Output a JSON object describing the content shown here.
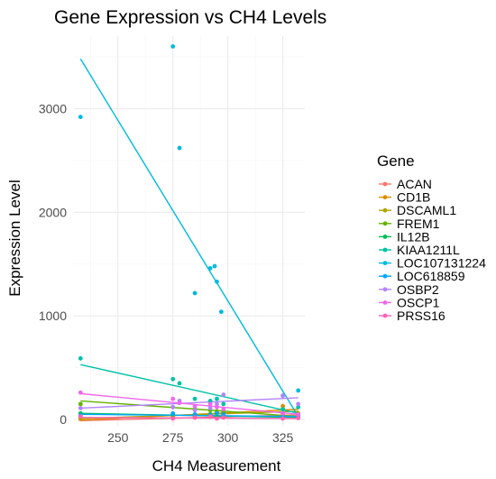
{
  "chart_data": {
    "type": "scatter",
    "title": "Gene Expression vs CH4 Levels",
    "xlabel": "CH4 Measurement",
    "ylabel": "Expression Level",
    "xlim": [
      230,
      335
    ],
    "ylim": [
      -60,
      3700
    ],
    "xticks": [
      250,
      275,
      300,
      325
    ],
    "yticks": [
      0,
      1000,
      2000,
      3000
    ],
    "grid": true,
    "legend": {
      "title": "Gene",
      "position": "right"
    },
    "series": [
      {
        "name": "ACAN",
        "color": "#F8766D",
        "points": [
          [
            233,
            10
          ],
          [
            275,
            15
          ],
          [
            285,
            20
          ],
          [
            292,
            25
          ],
          [
            295,
            30
          ],
          [
            298,
            20
          ],
          [
            325,
            40
          ],
          [
            332,
            50
          ]
        ],
        "trend": [
          [
            233,
            -10
          ],
          [
            332,
            45
          ]
        ]
      },
      {
        "name": "CD1B",
        "color": "#DB8E00",
        "points": [
          [
            233,
            5
          ],
          [
            275,
            30
          ],
          [
            285,
            20
          ],
          [
            292,
            40
          ],
          [
            295,
            60
          ],
          [
            298,
            30
          ],
          [
            325,
            130
          ],
          [
            332,
            20
          ]
        ],
        "trend": [
          [
            233,
            -5
          ],
          [
            332,
            100
          ]
        ]
      },
      {
        "name": "DSCAML1",
        "color": "#AEA200",
        "points": [
          [
            233,
            20
          ],
          [
            275,
            40
          ],
          [
            285,
            30
          ],
          [
            292,
            50
          ],
          [
            295,
            70
          ],
          [
            298,
            40
          ],
          [
            325,
            100
          ],
          [
            332,
            60
          ]
        ],
        "trend": [
          [
            233,
            10
          ],
          [
            332,
            80
          ]
        ]
      },
      {
        "name": "FREM1",
        "color": "#64B200",
        "points": [
          [
            233,
            150
          ],
          [
            275,
            120
          ],
          [
            285,
            100
          ],
          [
            292,
            90
          ],
          [
            295,
            80
          ],
          [
            298,
            70
          ],
          [
            325,
            60
          ],
          [
            332,
            40
          ]
        ],
        "trend": [
          [
            233,
            180
          ],
          [
            332,
            30
          ]
        ]
      },
      {
        "name": "IL12B",
        "color": "#00BD5C",
        "points": [
          [
            233,
            60
          ],
          [
            275,
            50
          ],
          [
            285,
            40
          ],
          [
            292,
            50
          ],
          [
            295,
            30
          ],
          [
            298,
            40
          ],
          [
            325,
            30
          ],
          [
            332,
            20
          ]
        ],
        "trend": [
          [
            233,
            60
          ],
          [
            332,
            20
          ]
        ]
      },
      {
        "name": "KIAA1211L",
        "color": "#00C1A7",
        "points": [
          [
            233,
            590
          ],
          [
            275,
            390
          ],
          [
            278,
            350
          ],
          [
            285,
            200
          ],
          [
            292,
            180
          ],
          [
            295,
            200
          ],
          [
            298,
            150
          ],
          [
            325,
            100
          ],
          [
            332,
            120
          ]
        ],
        "trend": [
          [
            233,
            530
          ],
          [
            332,
            60
          ]
        ]
      },
      {
        "name": "LOC107131224",
        "color": "#00BADE",
        "points": [
          [
            233,
            2920
          ],
          [
            275,
            3600
          ],
          [
            278,
            2620
          ],
          [
            285,
            1220
          ],
          [
            292,
            1460
          ],
          [
            294,
            1480
          ],
          [
            295,
            1330
          ],
          [
            297,
            1040
          ],
          [
            325,
            230
          ],
          [
            332,
            280
          ]
        ],
        "trend": [
          [
            233,
            3480
          ],
          [
            332,
            30
          ]
        ]
      },
      {
        "name": "LOC618859",
        "color": "#00A6FF",
        "points": [
          [
            233,
            40
          ],
          [
            275,
            60
          ],
          [
            285,
            50
          ],
          [
            292,
            40
          ],
          [
            295,
            60
          ],
          [
            298,
            50
          ],
          [
            325,
            20
          ],
          [
            332,
            30
          ]
        ],
        "trend": [
          [
            233,
            50
          ],
          [
            332,
            30
          ]
        ]
      },
      {
        "name": "OSBP2",
        "color": "#B385FF",
        "points": [
          [
            233,
            110
          ],
          [
            275,
            120
          ],
          [
            278,
            180
          ],
          [
            285,
            90
          ],
          [
            292,
            110
          ],
          [
            295,
            150
          ],
          [
            298,
            240
          ],
          [
            325,
            230
          ],
          [
            332,
            150
          ]
        ],
        "trend": [
          [
            233,
            110
          ],
          [
            332,
            210
          ]
        ]
      },
      {
        "name": "OSCP1",
        "color": "#EF67EB",
        "points": [
          [
            233,
            260
          ],
          [
            275,
            200
          ],
          [
            278,
            160
          ],
          [
            285,
            130
          ],
          [
            292,
            150
          ],
          [
            295,
            120
          ],
          [
            298,
            100
          ],
          [
            325,
            60
          ],
          [
            332,
            50
          ]
        ],
        "trend": [
          [
            233,
            250
          ],
          [
            332,
            50
          ]
        ]
      },
      {
        "name": "PRSS16",
        "color": "#FF63B6",
        "points": [
          [
            233,
            30
          ],
          [
            275,
            10
          ],
          [
            285,
            20
          ],
          [
            292,
            30
          ],
          [
            295,
            10
          ],
          [
            298,
            20
          ],
          [
            325,
            10
          ],
          [
            332,
            15
          ]
        ],
        "trend": [
          [
            233,
            20
          ],
          [
            332,
            10
          ]
        ]
      }
    ]
  }
}
